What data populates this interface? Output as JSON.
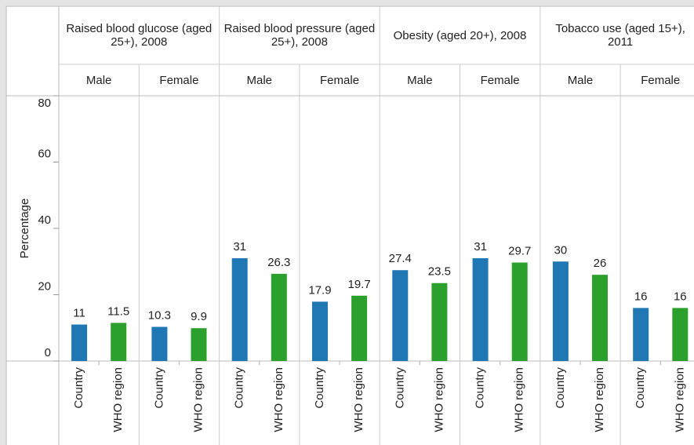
{
  "chart_data": {
    "type": "grouped-bar",
    "y_label": "Percentage",
    "facets": [
      "Raised blood glucose (aged 25+), 2008",
      "Raised blood pressure (aged 25+), 2008",
      "Obesity (aged 20+), 2008",
      "Tobacco use (aged 15+), 2011"
    ],
    "categories": [
      "Male",
      "Female",
      "Male",
      "Female",
      "Male",
      "Female",
      "Male",
      "Female"
    ],
    "series": [
      {
        "name": "Country",
        "color": "#1f77b4",
        "values": [
          11,
          10.3,
          31,
          17.9,
          27.4,
          31,
          30,
          16
        ]
      },
      {
        "name": "WHO region",
        "color": "#2ca02c",
        "values": [
          11.5,
          9.9,
          26.3,
          19.7,
          23.5,
          29.7,
          26,
          16
        ]
      }
    ],
    "ylim": [
      0,
      80
    ],
    "yticks": [
      0,
      20,
      40,
      60,
      80
    ]
  }
}
